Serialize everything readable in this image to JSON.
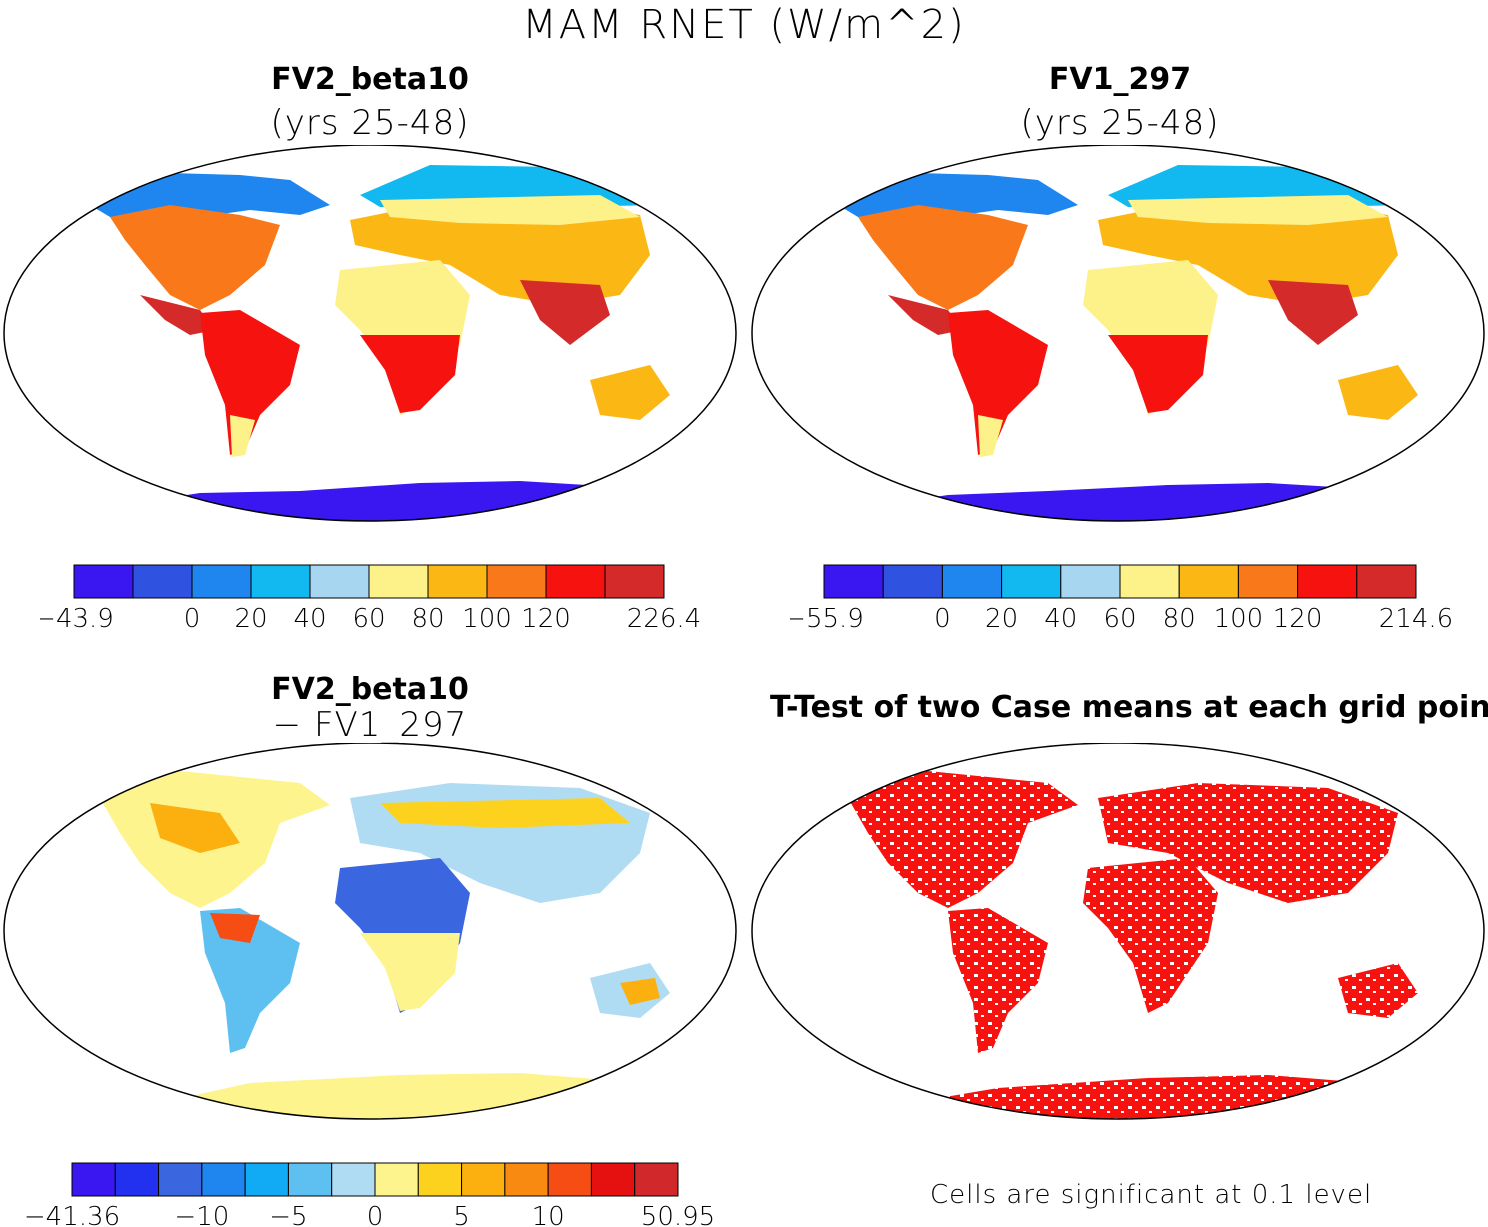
{
  "title": "MAM RNET (W/m^2)",
  "panels": [
    {
      "title": "FV2_beta10",
      "subtitle": "(yrs 25-48)",
      "colorbar": {
        "colors": [
          "#3a17f0",
          "#2f52e0",
          "#1f86f0",
          "#12b8f0",
          "#a6d6f0",
          "#fdf18a",
          "#fbb713",
          "#f9781a",
          "#f5120f",
          "#d42a2a"
        ],
        "tick_labels": [
          "−43.9",
          "0",
          "20",
          "40",
          "60",
          "80",
          "100",
          "120",
          "226.4"
        ]
      }
    },
    {
      "title": "FV1_297",
      "subtitle": "(yrs 25-48)",
      "colorbar": {
        "colors": [
          "#3a17f0",
          "#2f52e0",
          "#1f86f0",
          "#12b8f0",
          "#a6d6f0",
          "#fdf18a",
          "#fbb713",
          "#f9781a",
          "#f5120f",
          "#d42a2a"
        ],
        "tick_labels": [
          "−55.9",
          "0",
          "20",
          "40",
          "60",
          "80",
          "100",
          "120",
          "214.6"
        ]
      }
    },
    {
      "title": "FV2_beta10",
      "subtitle": "− FV1_297",
      "colorbar": {
        "colors": [
          "#3a17f0",
          "#2230f0",
          "#3a66e0",
          "#1f86f0",
          "#11aaf5",
          "#5ec0f0",
          "#b0dcf3",
          "#fdf48e",
          "#fdd21e",
          "#fbb010",
          "#f88a12",
          "#f54d14",
          "#e51010",
          "#d0282b"
        ],
        "tick_labels": [
          "−41.36",
          "−10",
          "−5",
          "0",
          "5",
          "10",
          "50.95"
        ]
      }
    },
    {
      "title": "T-Test of two Case means at each grid point",
      "note": "Cells are significant at 0.1 level"
    }
  ]
}
